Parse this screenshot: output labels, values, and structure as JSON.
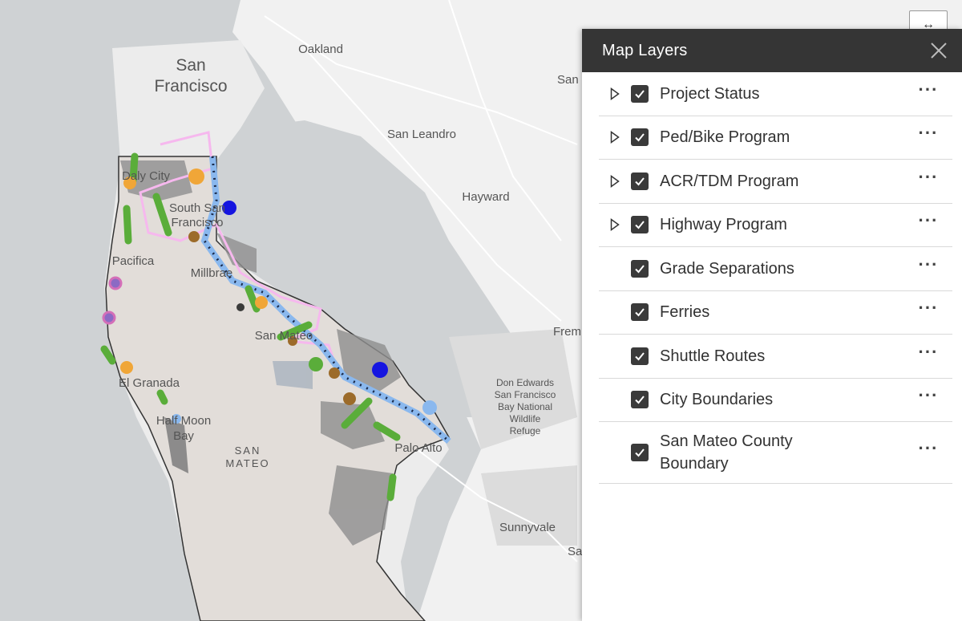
{
  "map": {
    "places": {
      "san_francisco": [
        "San",
        "Francisco"
      ],
      "oakland": "Oakland",
      "san_right": "San",
      "san_leandro": "San Leandro",
      "hayward": "Hayward",
      "daly_city": "Daly City",
      "south_sf": [
        "South San",
        "Francisco"
      ],
      "pacifica": "Pacifica",
      "millbrae": "Millbrae",
      "san_mateo": "San Mateo",
      "fremont": "Frem",
      "el_granada": "El Granada",
      "half_moon_bay": [
        "Half Moon",
        "Bay"
      ],
      "san_mateo_region": [
        "SAN",
        "MATEO"
      ],
      "refuge": [
        "Don Edwards",
        "San Francisco",
        "Bay National",
        "Wildlife",
        "Refuge"
      ],
      "palo_alto": "Palo Alto",
      "sunnyvale": "Sunnyvale",
      "sa_right": "Sa"
    }
  },
  "expand_button": {
    "icon": "swap-horizontal-icon",
    "glyph": "↔"
  },
  "panel": {
    "title": "Map Layers",
    "close_icon": "close-icon",
    "layers": [
      {
        "label": "Project Status",
        "expandable": true,
        "checked": true
      },
      {
        "label": "Ped/Bike Program",
        "expandable": true,
        "checked": true
      },
      {
        "label": "ACR/TDM Program",
        "expandable": true,
        "checked": true
      },
      {
        "label": "Highway Program",
        "expandable": true,
        "checked": true
      },
      {
        "label": "Grade Separations",
        "expandable": false,
        "checked": true
      },
      {
        "label": "Ferries",
        "expandable": false,
        "checked": true
      },
      {
        "label": "Shuttle Routes",
        "expandable": false,
        "checked": true
      },
      {
        "label": "City Boundaries",
        "expandable": false,
        "checked": true
      },
      {
        "label": "San Mateo County Boundary",
        "label_lines": [
          "San Mateo County",
          "Boundary"
        ],
        "expandable": false,
        "checked": true
      }
    ],
    "more_glyph": "···"
  }
}
